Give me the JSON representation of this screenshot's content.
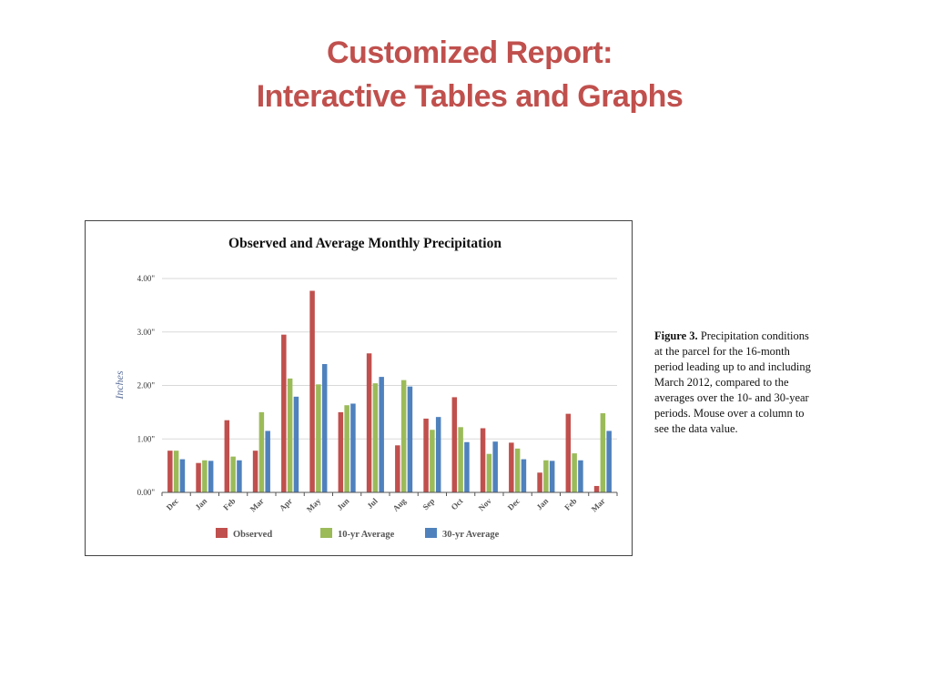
{
  "slide": {
    "title_line1": "Customized Report:",
    "title_line2": "Interactive Tables and Graphs"
  },
  "caption": {
    "label": "Figure 3.",
    "text": "Precipitation conditions at the parcel for the 16-month period leading up to and including March 2012, compared to the averages over the 10- and 30-year periods. Mouse over a column to see the data value."
  },
  "colors": {
    "title": "#c0504d",
    "observed": "#c0504d",
    "avg10": "#9bbb59",
    "avg30": "#4f81bd",
    "grid": "#d9d9d9"
  },
  "chart_data": {
    "type": "bar",
    "title": "Observed and Average Monthly Precipitation",
    "ylabel": "Inches",
    "xlabel": "",
    "ylim": [
      0,
      4
    ],
    "yticks": [
      0,
      1,
      2,
      3,
      4
    ],
    "ytick_labels": [
      "0.00\"",
      "1.00\"",
      "2.00\"",
      "3.00\"",
      "4.00\""
    ],
    "grid": true,
    "legend_position": "bottom",
    "categories": [
      "Dec",
      "Jan",
      "Feb",
      "Mar",
      "Apr",
      "May",
      "Jun",
      "Jul",
      "Aug",
      "Sep",
      "Oct",
      "Nov",
      "Dec",
      "Jan",
      "Feb",
      "Mar"
    ],
    "series": [
      {
        "name": "Observed",
        "color": "#c0504d",
        "values": [
          0.78,
          0.55,
          1.35,
          0.78,
          2.95,
          3.77,
          1.5,
          2.6,
          0.88,
          1.38,
          1.78,
          1.2,
          0.93,
          0.37,
          1.47,
          0.12
        ]
      },
      {
        "name": "10-yr Average",
        "color": "#9bbb59",
        "values": [
          0.78,
          0.6,
          0.67,
          1.5,
          2.13,
          2.02,
          1.63,
          2.04,
          2.1,
          1.17,
          1.22,
          0.72,
          0.82,
          0.6,
          0.73,
          1.48
        ]
      },
      {
        "name": "30-yr Average",
        "color": "#4f81bd",
        "values": [
          0.62,
          0.59,
          0.6,
          1.15,
          1.79,
          2.4,
          1.66,
          2.16,
          1.98,
          1.41,
          0.94,
          0.95,
          0.62,
          0.59,
          0.6,
          1.15
        ]
      }
    ]
  }
}
